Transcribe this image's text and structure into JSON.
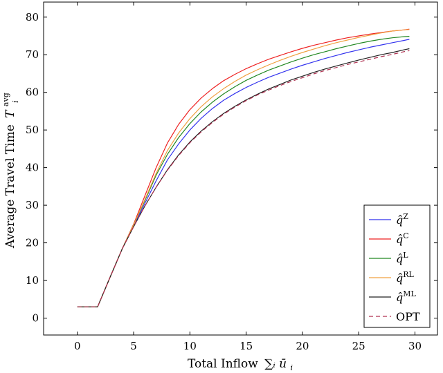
{
  "chart_data": {
    "type": "line",
    "title": "",
    "xlabel": "Total Inflow",
    "xlabel_math": "∑ᵢ ū",
    "xlabel_sub": "i",
    "ylabel": "Average Travel Time",
    "ylabel_math": "T",
    "ylabel_sub": "i",
    "ylabel_sup": "avg",
    "xlim": [
      -3,
      32
    ],
    "ylim": [
      -4.5,
      84
    ],
    "xticks": [
      0,
      5,
      10,
      15,
      20,
      25,
      30
    ],
    "yticks": [
      0,
      10,
      20,
      30,
      40,
      50,
      60,
      70,
      80
    ],
    "grid": false,
    "legend_position": "bottom-right",
    "series": [
      {
        "name": "q̂",
        "name_sup": "Z",
        "color": "#3333ee",
        "dash": "solid",
        "x": [
          0,
          1.8,
          3,
          4,
          5,
          6,
          7,
          8,
          9,
          10,
          11,
          12,
          13,
          14,
          15,
          16,
          17,
          18,
          19,
          20,
          21,
          22,
          23,
          24,
          25,
          26,
          27,
          28,
          29,
          29.5
        ],
        "y": [
          3,
          3,
          11.5,
          18.5,
          24.5,
          30.5,
          36.5,
          42,
          46.3,
          50,
          53.1,
          55.7,
          57.9,
          59.7,
          61.3,
          62.7,
          64,
          65.1,
          66.2,
          67.2,
          68.1,
          69,
          69.8,
          70.6,
          71.3,
          72,
          72.6,
          73.2,
          73.8,
          74.1
        ]
      },
      {
        "name": "q̂",
        "name_sup": "C",
        "color": "#ee2222",
        "dash": "solid",
        "x": [
          0,
          1.8,
          3,
          4,
          5,
          6,
          7,
          8,
          9,
          10,
          11,
          12,
          13,
          14,
          15,
          16,
          17,
          18,
          19,
          20,
          21,
          22,
          23,
          24,
          25,
          26,
          27,
          28,
          29,
          29.5
        ],
        "y": [
          3,
          3,
          11.5,
          18.5,
          25,
          32.5,
          40,
          46.5,
          51.5,
          55.4,
          58.5,
          61,
          63.1,
          64.8,
          66.3,
          67.6,
          68.8,
          69.8,
          70.8,
          71.7,
          72.5,
          73.2,
          73.9,
          74.5,
          75,
          75.5,
          75.9,
          76.3,
          76.6,
          76.8
        ]
      },
      {
        "name": "q̂",
        "name_sup": "L",
        "color": "#228822",
        "dash": "solid",
        "x": [
          0,
          1.8,
          3,
          4,
          5,
          6,
          7,
          8,
          9,
          10,
          11,
          12,
          13,
          14,
          15,
          16,
          17,
          18,
          19,
          20,
          21,
          22,
          23,
          24,
          25,
          26,
          27,
          28,
          29,
          29.5
        ],
        "y": [
          3,
          3,
          11.5,
          18.5,
          24.8,
          31.2,
          38,
          43.5,
          48,
          51.7,
          54.8,
          57.4,
          59.6,
          61.5,
          63.2,
          64.6,
          65.9,
          67,
          68.1,
          69.1,
          70,
          70.8,
          71.6,
          72.3,
          73,
          73.6,
          74.1,
          74.5,
          74.8,
          74.9
        ]
      },
      {
        "name": "q̂",
        "name_sup": "RL",
        "color": "#f0a040",
        "dash": "solid",
        "x": [
          0,
          1.8,
          3,
          4,
          5,
          6,
          7,
          8,
          9,
          10,
          11,
          12,
          13,
          14,
          15,
          16,
          17,
          18,
          19,
          20,
          21,
          22,
          23,
          24,
          25,
          26,
          27,
          28,
          29,
          29.5
        ],
        "y": [
          3,
          3,
          11.5,
          18.5,
          24.8,
          31.5,
          38.5,
          44.5,
          49.2,
          53,
          56.2,
          58.8,
          61,
          62.9,
          64.6,
          66,
          67.3,
          68.5,
          69.6,
          70.6,
          71.5,
          72.4,
          73.2,
          73.9,
          74.6,
          75.2,
          75.8,
          76.3,
          76.6,
          76.7
        ]
      },
      {
        "name": "q̂",
        "name_sup": "ML",
        "color": "#222222",
        "dash": "solid",
        "x": [
          0,
          1.8,
          3,
          4,
          5,
          6,
          7,
          8,
          9,
          10,
          11,
          12,
          13,
          14,
          15,
          16,
          17,
          18,
          19,
          20,
          21,
          22,
          23,
          24,
          25,
          26,
          27,
          28,
          29,
          29.5
        ],
        "y": [
          3,
          3,
          11.5,
          18.5,
          24.3,
          29.8,
          34.8,
          39.4,
          43.4,
          46.8,
          49.7,
          52.2,
          54.4,
          56.3,
          58,
          59.5,
          60.9,
          62.1,
          63.3,
          64.3,
          65.3,
          66.2,
          67,
          67.8,
          68.6,
          69.3,
          70,
          70.6,
          71.3,
          71.6
        ]
      },
      {
        "name": "OPT",
        "name_sup": "",
        "color": "#b03050",
        "dash": "dashed",
        "x": [
          0,
          1.8,
          3,
          4,
          5,
          6,
          7,
          8,
          9,
          10,
          11,
          12,
          13,
          14,
          15,
          16,
          17,
          18,
          19,
          20,
          21,
          22,
          23,
          24,
          25,
          26,
          27,
          28,
          29,
          29.5
        ],
        "y": [
          3,
          3,
          11.5,
          18.5,
          24.3,
          29.8,
          34.8,
          39.3,
          43.2,
          46.6,
          49.5,
          52,
          54.2,
          56.1,
          57.8,
          59.3,
          60.6,
          61.8,
          62.9,
          63.9,
          64.9,
          65.8,
          66.6,
          67.4,
          68.1,
          68.8,
          69.5,
          70.1,
          70.8,
          71.1
        ]
      }
    ]
  }
}
